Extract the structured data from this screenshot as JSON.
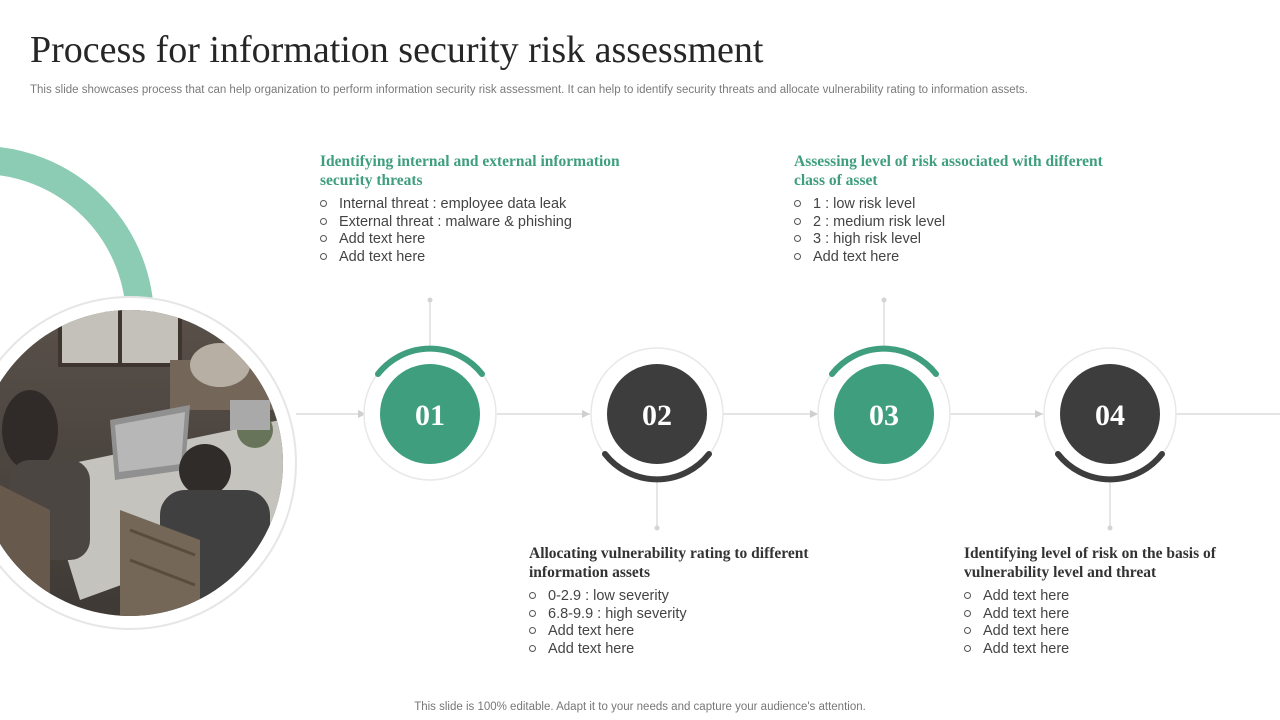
{
  "header": {
    "title": "Process for information security risk assessment",
    "subtitle": "This slide showcases process that can help organization to perform information security risk assessment. It can help to  identify  security threats and allocate vulnerability rating to information assets."
  },
  "steps": [
    {
      "number": "01",
      "color": "#3e9e7e",
      "heading": "Identifying internal and external information security threats",
      "items": [
        "Internal threat : employee data leak",
        "External threat : malware & phishing",
        "Add text here",
        "Add text here"
      ]
    },
    {
      "number": "02",
      "color": "#3d3d3d",
      "heading": "Allocating vulnerability rating to different information assets",
      "items": [
        "0-2.9 : low severity",
        "6.8-9.9 : high severity",
        "Add text here",
        "Add text here"
      ]
    },
    {
      "number": "03",
      "color": "#3e9e7e",
      "heading": "Assessing  level of risk associated with different class of asset",
      "items": [
        "1 : low risk level",
        "2 : medium risk level",
        "3 : high risk level",
        "Add text here"
      ]
    },
    {
      "number": "04",
      "color": "#3d3d3d",
      "heading": "Identifying level of risk on the basis of vulnerability level and threat",
      "items": [
        "Add text here",
        "Add text here",
        "Add text here",
        "Add text here"
      ]
    }
  ],
  "footer": {
    "text": "This slide is 100% editable. Adapt it to your needs and capture your audience's attention."
  },
  "colors": {
    "accent_green": "#3e9e7e",
    "light_green": "#8ccbb4",
    "dark": "#3d3d3d"
  }
}
